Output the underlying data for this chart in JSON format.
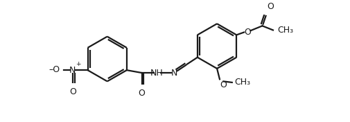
{
  "bg_color": "#ffffff",
  "line_color": "#1a1a1a",
  "line_width": 1.6,
  "font_size": 8.5,
  "figsize": [
    5.06,
    1.76
  ],
  "dpi": 100,
  "xlim": [
    0,
    506
  ],
  "ylim": [
    0,
    176
  ]
}
